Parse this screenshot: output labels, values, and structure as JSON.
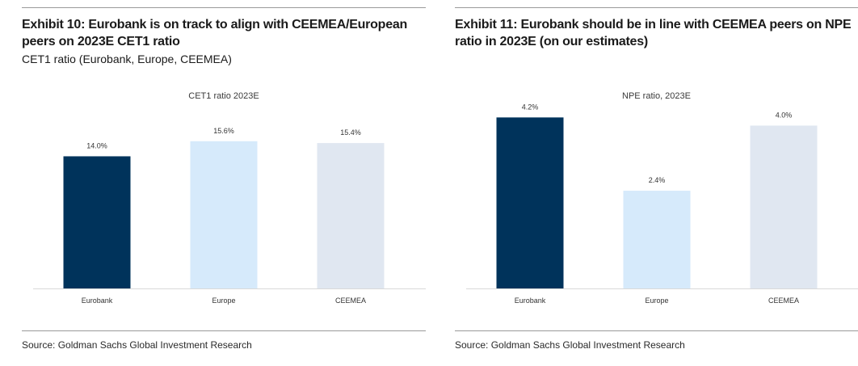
{
  "left_panel": {
    "title": "Exhibit 10: Eurobank is on track to align with CEEMEA/European peers on 2023E CET1 ratio",
    "subtitle": "CET1 ratio (Eurobank, Europe, CEEMEA)",
    "source": "Source: Goldman Sachs Global Investment Research"
  },
  "right_panel": {
    "title": "Exhibit 11: Eurobank should be in line with CEEMEA peers on NPE ratio in 2023E (on our estimates)",
    "source": "Source: Goldman Sachs Global Investment Research"
  },
  "colors": {
    "eurobank": "#00335b",
    "europe": "#d6eafb",
    "ceemea": "#e0e7f1"
  },
  "chart_data": [
    {
      "type": "bar",
      "title": "CET1 ratio 2023E",
      "categories": [
        "Eurobank",
        "Europe",
        "CEEMEA"
      ],
      "values": [
        14.0,
        15.6,
        15.4
      ],
      "data_labels": [
        "14.0%",
        "15.6%",
        "15.4%"
      ],
      "ylim": [
        0,
        22
      ],
      "xlabel": "",
      "ylabel": ""
    },
    {
      "type": "bar",
      "title": "NPE ratio, 2023E",
      "categories": [
        "Eurobank",
        "Europe",
        "CEEMEA"
      ],
      "values": [
        4.2,
        2.4,
        4.0
      ],
      "data_labels": [
        "4.2%",
        "2.4%",
        "4.0%"
      ],
      "ylim": [
        0,
        5.1
      ],
      "xlabel": "",
      "ylabel": ""
    }
  ]
}
